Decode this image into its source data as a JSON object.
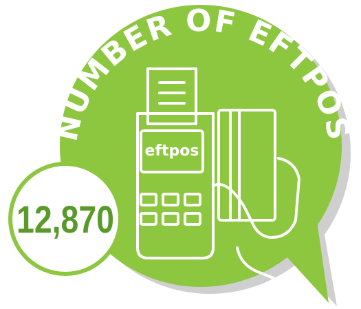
{
  "title": "NUMBER OF EFTPOS",
  "logo": "eftpos",
  "value": "12,870"
}
